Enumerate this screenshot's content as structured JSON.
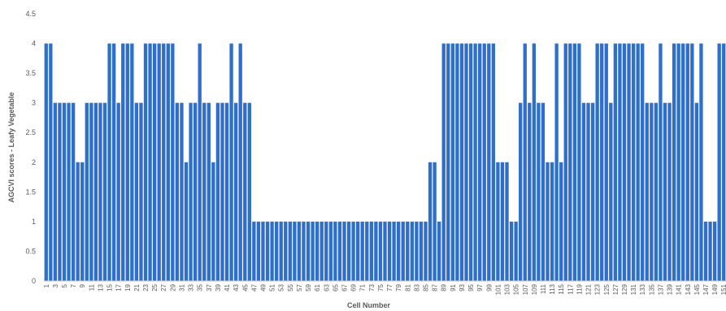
{
  "chart_data": {
    "type": "bar",
    "title": "",
    "xlabel": "Cell Number",
    "ylabel": "AGCVI scores - Leafy Vegetable",
    "ylim": [
      0,
      4.5
    ],
    "y_ticks": [
      "0",
      "0.5",
      "1",
      "1.5",
      "2",
      "2.5",
      "3",
      "3.5",
      "4",
      "4.5"
    ],
    "grid": false,
    "legend": "none",
    "bar_color": "#2E6FCE",
    "x_tick_every": 2,
    "x_start": 1,
    "values": [
      4,
      4,
      3,
      3,
      3,
      3,
      3,
      2,
      2,
      3,
      3,
      3,
      3,
      3,
      4,
      4,
      3,
      4,
      4,
      4,
      3,
      3,
      4,
      4,
      4,
      4,
      4,
      4,
      4,
      3,
      3,
      2,
      3,
      3,
      4,
      3,
      3,
      2,
      3,
      3,
      3,
      4,
      3,
      4,
      3,
      3,
      1,
      1,
      1,
      1,
      1,
      1,
      1,
      1,
      1,
      1,
      1,
      1,
      1,
      1,
      1,
      1,
      1,
      1,
      1,
      1,
      1,
      1,
      1,
      1,
      1,
      1,
      1,
      1,
      1,
      1,
      1,
      1,
      1,
      1,
      1,
      1,
      1,
      1,
      1,
      2,
      2,
      1,
      4,
      4,
      4,
      4,
      4,
      4,
      4,
      4,
      4,
      4,
      4,
      4,
      2,
      2,
      2,
      1,
      1,
      3,
      4,
      3,
      4,
      3,
      3,
      2,
      2,
      4,
      2,
      4,
      4,
      4,
      4,
      3,
      3,
      3,
      4,
      4,
      4,
      3,
      4,
      4,
      4,
      4,
      4,
      4,
      4,
      3,
      3,
      3,
      4,
      3,
      3,
      4,
      4,
      4,
      4,
      4,
      3,
      4,
      1,
      1,
      1,
      4,
      4
    ]
  }
}
